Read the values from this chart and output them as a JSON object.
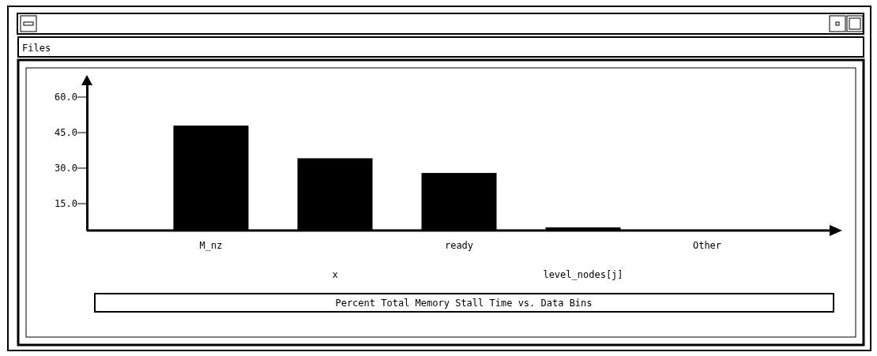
{
  "chart_data": {
    "type": "bar",
    "title": "Percent Total Memory Stall Time vs. Data Bins",
    "categories": [
      "M_nz",
      "x",
      "ready",
      "level_nodes[j]",
      "Other"
    ],
    "values": [
      47.8,
      34.0,
      27.8,
      4.8,
      null
    ],
    "color": "#000000",
    "ylim": [
      3.5,
      68
    ],
    "yticks": [
      {
        "value": 15,
        "label": "15.0"
      },
      {
        "value": 30,
        "label": "30.0"
      },
      {
        "value": 45,
        "label": "45.0"
      },
      {
        "value": 60,
        "label": "60.0"
      }
    ],
    "grid": false,
    "annotations": [
      "Files"
    ]
  }
}
